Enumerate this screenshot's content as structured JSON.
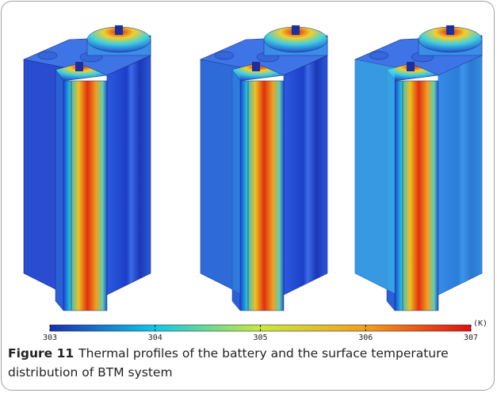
{
  "figure": {
    "colorbar": {
      "range": [
        303,
        307
      ],
      "ticks": [
        303,
        304,
        305,
        306,
        307
      ],
      "unit": "(K)"
    },
    "caption": {
      "label": "Figure 11",
      "text": "Thermal profiles of the battery and the surface temperature distribution of BTM system"
    }
  }
}
